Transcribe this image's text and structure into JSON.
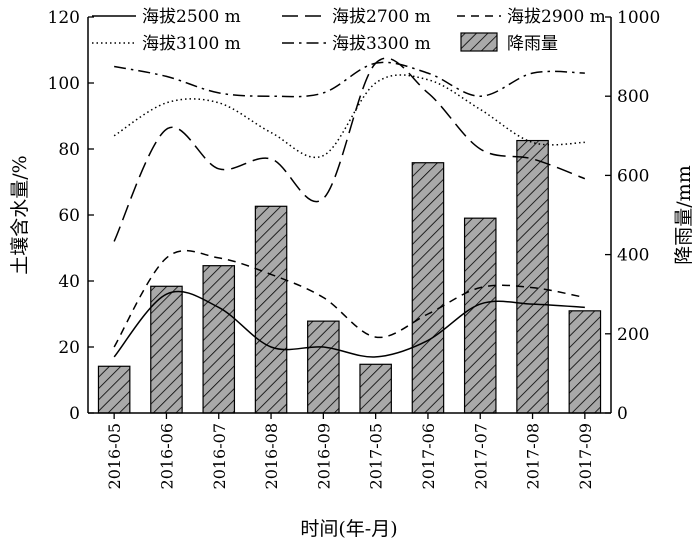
{
  "chart_data": {
    "type": "bar+line",
    "categories": [
      "2016-05",
      "2016-06",
      "2016-07",
      "2016-08",
      "2016-09",
      "2017-05",
      "2017-06",
      "2017-07",
      "2017-08",
      "2017-09"
    ],
    "xlabel": "时间(年-月)",
    "ylabel_left": "土壤含水量/%",
    "ylabel_right": "降雨量/mm",
    "ylim_left": [
      0,
      120
    ],
    "ylim_right": [
      0,
      1000
    ],
    "yticks_left": [
      "0",
      "20",
      "40",
      "60",
      "80",
      "100",
      "120"
    ],
    "yticks_right": [
      "0",
      "200",
      "400",
      "600",
      "800",
      "1000"
    ],
    "grid": false,
    "legend_position": "top",
    "series": [
      {
        "name": "海拔2500 m",
        "type": "line",
        "axis": "left",
        "dash": "solid",
        "values": [
          17,
          36,
          32,
          20,
          20,
          17,
          22,
          33,
          33,
          32
        ]
      },
      {
        "name": "海拔2700 m",
        "type": "line",
        "axis": "left",
        "dash": "long-dash",
        "values": [
          52,
          86,
          74,
          77,
          65,
          106,
          97,
          80,
          77,
          71
        ]
      },
      {
        "name": "海拔2900 m",
        "type": "line",
        "axis": "left",
        "dash": "short-dash",
        "values": [
          20,
          47,
          47,
          42,
          35,
          23,
          30,
          38,
          38,
          35
        ]
      },
      {
        "name": "海拔3100 m",
        "type": "line",
        "axis": "left",
        "dash": "dotted",
        "values": [
          84,
          94,
          94,
          85,
          78,
          100,
          101,
          92,
          82,
          82
        ]
      },
      {
        "name": "海拔3300 m",
        "type": "line",
        "axis": "left",
        "dash": "dash-dot",
        "values": [
          105,
          102,
          97,
          96,
          97,
          106,
          103,
          96,
          103,
          103
        ]
      },
      {
        "name": "降雨量",
        "type": "bar",
        "axis": "right",
        "pattern": "hatched",
        "values": [
          118,
          320,
          372,
          522,
          232,
          123,
          632,
          492,
          688,
          258
        ]
      }
    ]
  }
}
